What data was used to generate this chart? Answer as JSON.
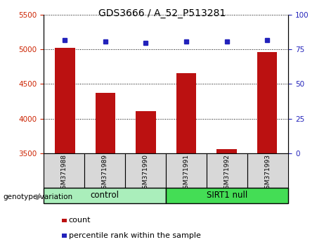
{
  "title": "GDS3666 / A_52_P513281",
  "samples": [
    "GSM371988",
    "GSM371989",
    "GSM371990",
    "GSM371991",
    "GSM371992",
    "GSM371993"
  ],
  "counts": [
    5020,
    4370,
    4110,
    4660,
    3560,
    4960
  ],
  "percentile_ranks": [
    82,
    81,
    80,
    81,
    81,
    82
  ],
  "ylim_left": [
    3500,
    5500
  ],
  "ylim_right": [
    0,
    100
  ],
  "yticks_left": [
    3500,
    4000,
    4500,
    5000,
    5500
  ],
  "yticks_right": [
    0,
    25,
    50,
    75,
    100
  ],
  "bar_color": "#bb1111",
  "dot_color": "#2222bb",
  "groups": [
    {
      "label": "control",
      "n": 3,
      "color": "#aaeebb"
    },
    {
      "label": "SIRT1 null",
      "n": 3,
      "color": "#44dd55"
    }
  ],
  "group_label": "genotype/variation",
  "legend_count_label": "count",
  "legend_pct_label": "percentile rank within the sample",
  "bg_color": "#d8d8d8",
  "tick_color_left": "#cc2200",
  "tick_color_right": "#2222bb"
}
